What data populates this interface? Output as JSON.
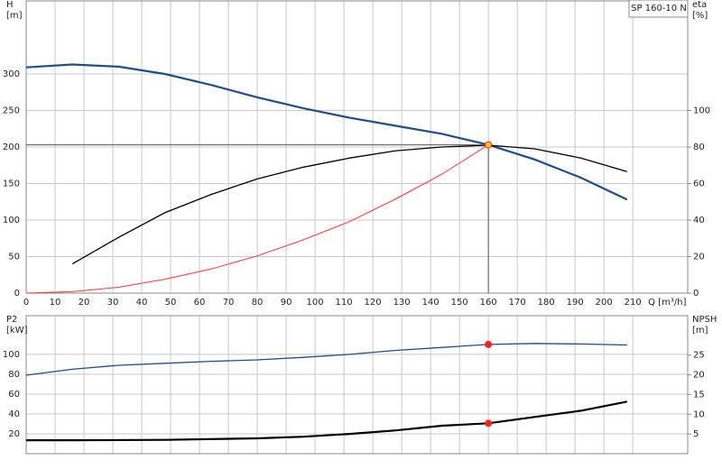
{
  "chart_data": [
    {
      "type": "line",
      "annotation": "SP 160-10 N",
      "ylabel": "H",
      "yunit": "[m]",
      "y2label": "eta",
      "y2unit": "[%]",
      "xlabel": "Q [m³/h]",
      "xlim": [
        0,
        229
      ],
      "xticks": [
        0,
        10,
        20,
        30,
        40,
        50,
        60,
        70,
        80,
        90,
        100,
        110,
        120,
        130,
        140,
        150,
        160,
        170,
        180,
        190,
        200,
        210
      ],
      "ylim": [
        0,
        400
      ],
      "yticks": [
        0,
        50,
        100,
        150,
        200,
        250,
        300
      ],
      "y2lim": [
        0,
        160
      ],
      "y2ticks": [
        0,
        20,
        40,
        60,
        80,
        100
      ],
      "grid": true,
      "series": [
        {
          "color": "#1f4e8c",
          "width": 2.2,
          "axis": "y",
          "x": [
            0,
            16,
            32,
            48,
            64,
            80,
            96,
            112,
            128,
            144,
            160,
            176,
            192,
            208
          ],
          "values": [
            309,
            313,
            310,
            300,
            285,
            268,
            253,
            240,
            229,
            218,
            203,
            183,
            158,
            128
          ]
        },
        {
          "color": "#000000",
          "width": 1.3,
          "axis": "y2",
          "x": [
            16,
            32,
            48,
            64,
            80,
            96,
            112,
            128,
            144,
            160,
            176,
            192,
            208
          ],
          "values": [
            16,
            30.5,
            44,
            54,
            62.5,
            69,
            74,
            78,
            80,
            81,
            79,
            74,
            66.5
          ]
        },
        {
          "color": "#ff3333",
          "width": 1,
          "axis": "y",
          "x": [
            0,
            16,
            32,
            48,
            64,
            80,
            96,
            112,
            128,
            144,
            160
          ],
          "values": [
            0,
            2,
            8,
            19,
            33,
            51,
            73,
            98,
            129,
            163,
            203
          ]
        }
      ],
      "points": [
        {
          "x": 160,
          "y": 203,
          "axis": "y",
          "color": "#ffcc00",
          "guides": true
        }
      ]
    },
    {
      "type": "line",
      "ylabel": "P2",
      "yunit": "[kW]",
      "y2label": "NPSH",
      "y2unit": "[m]",
      "xlim": [
        0,
        229
      ],
      "ylim": [
        0,
        139
      ],
      "yticks": [
        20,
        40,
        60,
        80,
        100
      ],
      "y2lim": [
        0,
        35
      ],
      "y2ticks": [
        5,
        10,
        15,
        20,
        25
      ],
      "grid": true,
      "series": [
        {
          "color": "#1f4e8c",
          "width": 1.3,
          "axis": "y",
          "x": [
            0,
            16,
            32,
            48,
            64,
            80,
            96,
            112,
            128,
            144,
            160,
            176,
            192,
            208
          ],
          "values": [
            79,
            85,
            89,
            91,
            93,
            94.5,
            97,
            100,
            104,
            107,
            110,
            111,
            110.5,
            109.5
          ]
        },
        {
          "color": "#000000",
          "width": 2.2,
          "axis": "y2",
          "x": [
            0,
            16,
            48,
            80,
            96,
            112,
            128,
            144,
            160,
            176,
            192,
            208
          ],
          "values": [
            3.4,
            3.4,
            3.5,
            3.9,
            4.3,
            5.0,
            5.9,
            7.1,
            7.7,
            9.3,
            10.9,
            13.2
          ]
        }
      ],
      "points": [
        {
          "x": 160,
          "y": 110,
          "axis": "y",
          "color": "#ff2020"
        },
        {
          "x": 160,
          "y": 7.7,
          "axis": "y2",
          "color": "#ff2020"
        }
      ]
    }
  ]
}
